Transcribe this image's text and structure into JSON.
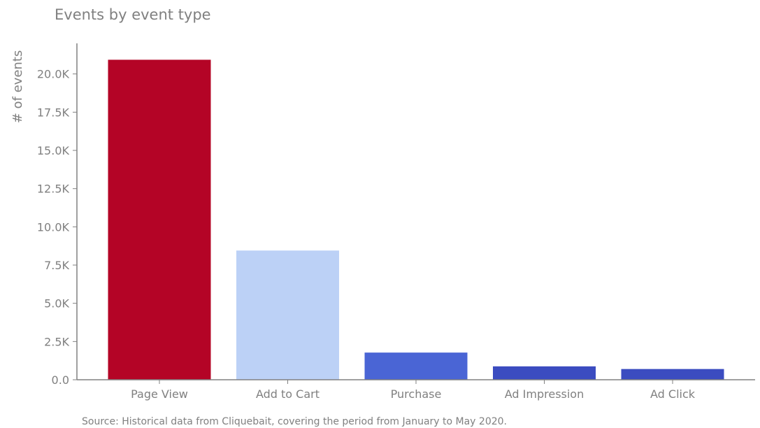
{
  "chart_data": {
    "type": "bar",
    "title": "Events by event type",
    "xlabel": "",
    "ylabel": "# of events",
    "categories": [
      "Page View",
      "Add to Cart",
      "Purchase",
      "Ad Impression",
      "Ad Click"
    ],
    "values": [
      20928,
      8451,
      1777,
      876,
      702
    ],
    "colors": [
      "#b40426",
      "#bcd1f6",
      "#4a65d5",
      "#3b4cc0",
      "#3b4cc0"
    ],
    "ylim": [
      0,
      22000
    ],
    "yticks": [
      0,
      2500,
      5000,
      7500,
      10000,
      12500,
      15000,
      17500,
      20000
    ],
    "ytick_labels": [
      "0.0",
      "2.5K",
      "5.0K",
      "7.5K",
      "10.0K",
      "12.5K",
      "15.0K",
      "17.5K",
      "20.0K"
    ],
    "grid": false,
    "legend": "none",
    "source": "Source: Historical data from Cliquebait, covering the period from January to May 2020."
  }
}
